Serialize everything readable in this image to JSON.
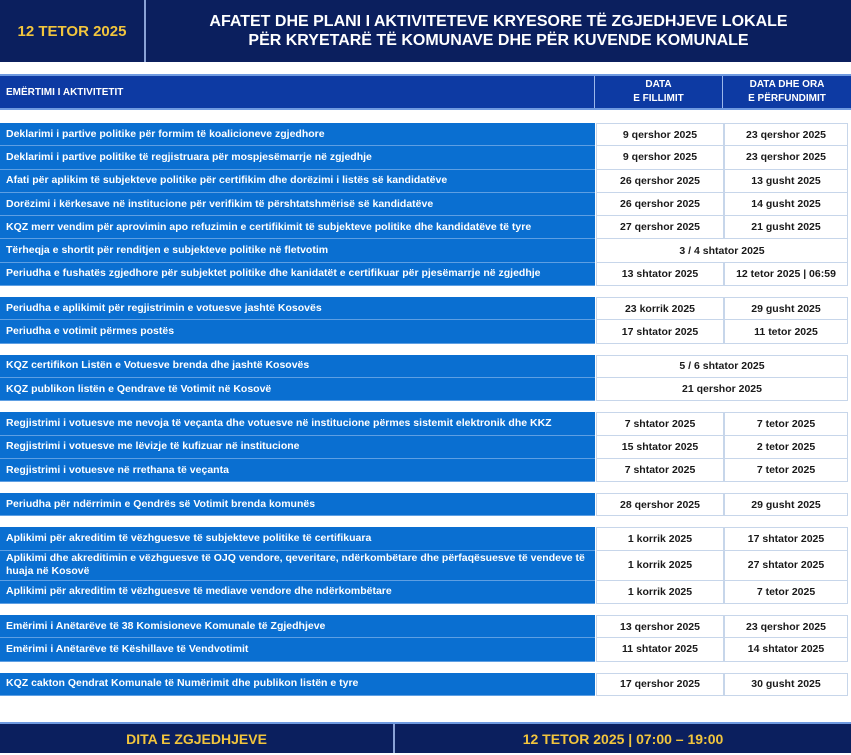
{
  "header": {
    "date": "12 TETOR 2025",
    "title_line1": "AFATET DHE PLANI I AKTIVITETEVE KRYESORE TË ZGJEDHJEVE LOKALE",
    "title_line2": "PËR KRYETARË TË KOMUNAVE DHE PËR KUVENDE KOMUNALE"
  },
  "columns": {
    "activity": "EMËRTIMI I AKTIVITETIT",
    "start_line1": "DATA",
    "start_line2": "E FILLIMIT",
    "end_line1": "DATA DHE ORA",
    "end_line2": "E PËRFUNDIMIT"
  },
  "groups": [
    [
      {
        "activity": "Deklarimi i partive politike për formim të koalicioneve zgjedhore",
        "start": "9 qershor 2025",
        "end": "23 qershor 2025"
      },
      {
        "activity": "Deklarimi i partive politike të regjistruara për mospjesëmarrje në zgjedhje",
        "start": "9 qershor 2025",
        "end": "23 qershor 2025"
      },
      {
        "activity": "Afati për aplikim të subjekteve politike për certifikim dhe dorëzimi i listës së kandidatëve",
        "start": "26 qershor 2025",
        "end": "13 gusht 2025"
      },
      {
        "activity": "Dorëzimi i kërkesave në institucione për verifikim të përshtatshmërisë së kandidatëve",
        "start": "26 qershor 2025",
        "end": "14 gusht 2025"
      },
      {
        "activity": "KQZ merr vendim për aprovimin apo refuzimin e certifikimit të subjekteve politike dhe kandidatëve të tyre",
        "start": "27 qershor 2025",
        "end": "21 gusht 2025"
      },
      {
        "activity": "Tërheqja e shortit për renditjen e subjekteve politike në fletvotim",
        "merged": "3 / 4 shtator 2025"
      },
      {
        "activity": "Periudha e fushatës zgjedhore për subjektet politike dhe kanidatët e certifikuar për pjesëmarrje në zgjedhje",
        "start": "13 shtator 2025",
        "end": "12 tetor 2025 | 06:59"
      }
    ],
    [
      {
        "activity": "Periudha e aplikimit për regjistrimin e votuesve jashtë Kosovës",
        "start": "23 korrik 2025",
        "end": "29 gusht 2025"
      },
      {
        "activity": "Periudha e votimit përmes postës",
        "start": "17 shtator 2025",
        "end": "11 tetor 2025"
      }
    ],
    [
      {
        "activity": "KQZ certifikon Listën e Votuesve brenda dhe jashtë Kosovës",
        "merged": "5 / 6 shtator 2025"
      },
      {
        "activity": "KQZ publikon listën e Qendrave të Votimit në Kosovë",
        "merged": "21 qershor 2025"
      }
    ],
    [
      {
        "activity": "Regjistrimi i votuesve me nevoja të veçanta dhe votuesve në institucione përmes sistemit elektronik dhe KKZ",
        "start": "7 shtator 2025",
        "end": "7 tetor 2025"
      },
      {
        "activity": "Regjistrimi i votuesve me lëvizje të kufizuar në institucione",
        "start": "15 shtator 2025",
        "end": "2 tetor 2025"
      },
      {
        "activity": "Regjistrimi i votuesve në rrethana të veçanta",
        "start": "7 shtator 2025",
        "end": "7 tetor 2025"
      }
    ],
    [
      {
        "activity": "Periudha për ndërrimin e Qendrës së Votimit brenda komunës",
        "start": "28 qershor 2025",
        "end": "29 gusht 2025"
      }
    ],
    [
      {
        "activity": "Aplikimi për akreditim të vëzhguesve të subjekteve politike të certifikuara",
        "start": "1 korrik 2025",
        "end": "17 shtator 2025"
      },
      {
        "activity": "Aplikimi dhe akreditimin e vëzhguesve të OJQ vendore, qeveritare, ndërkombëtare dhe përfaqësuesve të vendeve të huaja në Kosovë",
        "start": "1 korrik 2025",
        "end": "27 shtator 2025",
        "tall": true
      },
      {
        "activity": "Aplikimi për akreditim të vëzhguesve të mediave vendore dhe ndërkombëtare",
        "start": "1 korrik 2025",
        "end": "7 tetor 2025"
      }
    ],
    [
      {
        "activity": "Emërimi i Anëtarëve të 38 Komisioneve Komunale të Zgjedhjeve",
        "start": "13 qershor 2025",
        "end": "23 qershor 2025"
      },
      {
        "activity": "Emërimi i Anëtarëve të Këshillave të Vendvotimit",
        "start": "11 shtator 2025",
        "end": "14 shtator 2025"
      }
    ],
    [
      {
        "activity": "KQZ cakton Qendrat Komunale të Numërimit dhe publikon listën e tyre",
        "start": "17 qershor 2025",
        "end": "30 gusht 2025"
      }
    ]
  ],
  "footer": {
    "label": "DITA E ZGJEDHJEVE",
    "datetime": "12 TETOR 2025 | 07:00 – 19:00"
  },
  "colors": {
    "navy": "#0b1f5e",
    "activity_blue": "#0a6fd1",
    "header_blue": "#0d3aa3",
    "gold": "#f2c53d"
  }
}
